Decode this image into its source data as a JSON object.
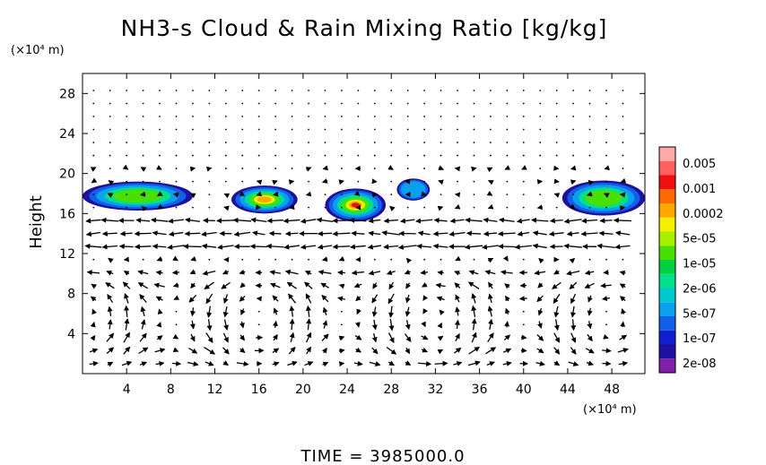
{
  "chart_data": {
    "type": "heatmap",
    "title": "NH3-s Cloud & Rain Mixing Ratio [kg/kg]",
    "ylabel": "Height",
    "y_unit": "(×10⁴ m)",
    "x_unit": "(×10⁴ m)",
    "footer": "TIME = 3985000.0",
    "xlim": [
      0,
      51
    ],
    "ylim": [
      0,
      30
    ],
    "x_ticks": [
      4,
      8,
      12,
      16,
      20,
      24,
      28,
      32,
      36,
      40,
      44,
      48
    ],
    "y_ticks": [
      4,
      8,
      12,
      16,
      20,
      24,
      28
    ],
    "colorbar": {
      "labels": [
        "0.005",
        "0.001",
        "0.0002",
        "5e-05",
        "1e-05",
        "2e-06",
        "5e-07",
        "1e-07",
        "2e-08"
      ],
      "colors": [
        "#ffa8a8",
        "#ff6060",
        "#f01010",
        "#ff6a00",
        "#ffa800",
        "#f5f000",
        "#a8f000",
        "#48e000",
        "#00d040",
        "#00e08a",
        "#00c8d0",
        "#0aa0f0",
        "#1060e8",
        "#1020d0",
        "#2010a0",
        "#8020a8"
      ]
    },
    "cloud_regions": [
      {
        "x": [
          0,
          10
        ],
        "y": [
          16.3,
          19.2
        ],
        "max_level": "1e-05"
      },
      {
        "x": [
          13.5,
          19.5
        ],
        "y": [
          16,
          18.8
        ],
        "max_level": "0.0002"
      },
      {
        "x": [
          22,
          27.5
        ],
        "y": [
          15.2,
          18.5
        ],
        "max_level": "0.001"
      },
      {
        "x": [
          28.5,
          31.5
        ],
        "y": [
          17.3,
          19.5
        ],
        "max_level": "5e-07"
      },
      {
        "x": [
          43.5,
          51
        ],
        "y": [
          15.8,
          19.3
        ],
        "max_level": "1e-05"
      }
    ],
    "vector_field": "wind arrows across domain; strong flow near y=13-16, overturning cells below 10"
  }
}
